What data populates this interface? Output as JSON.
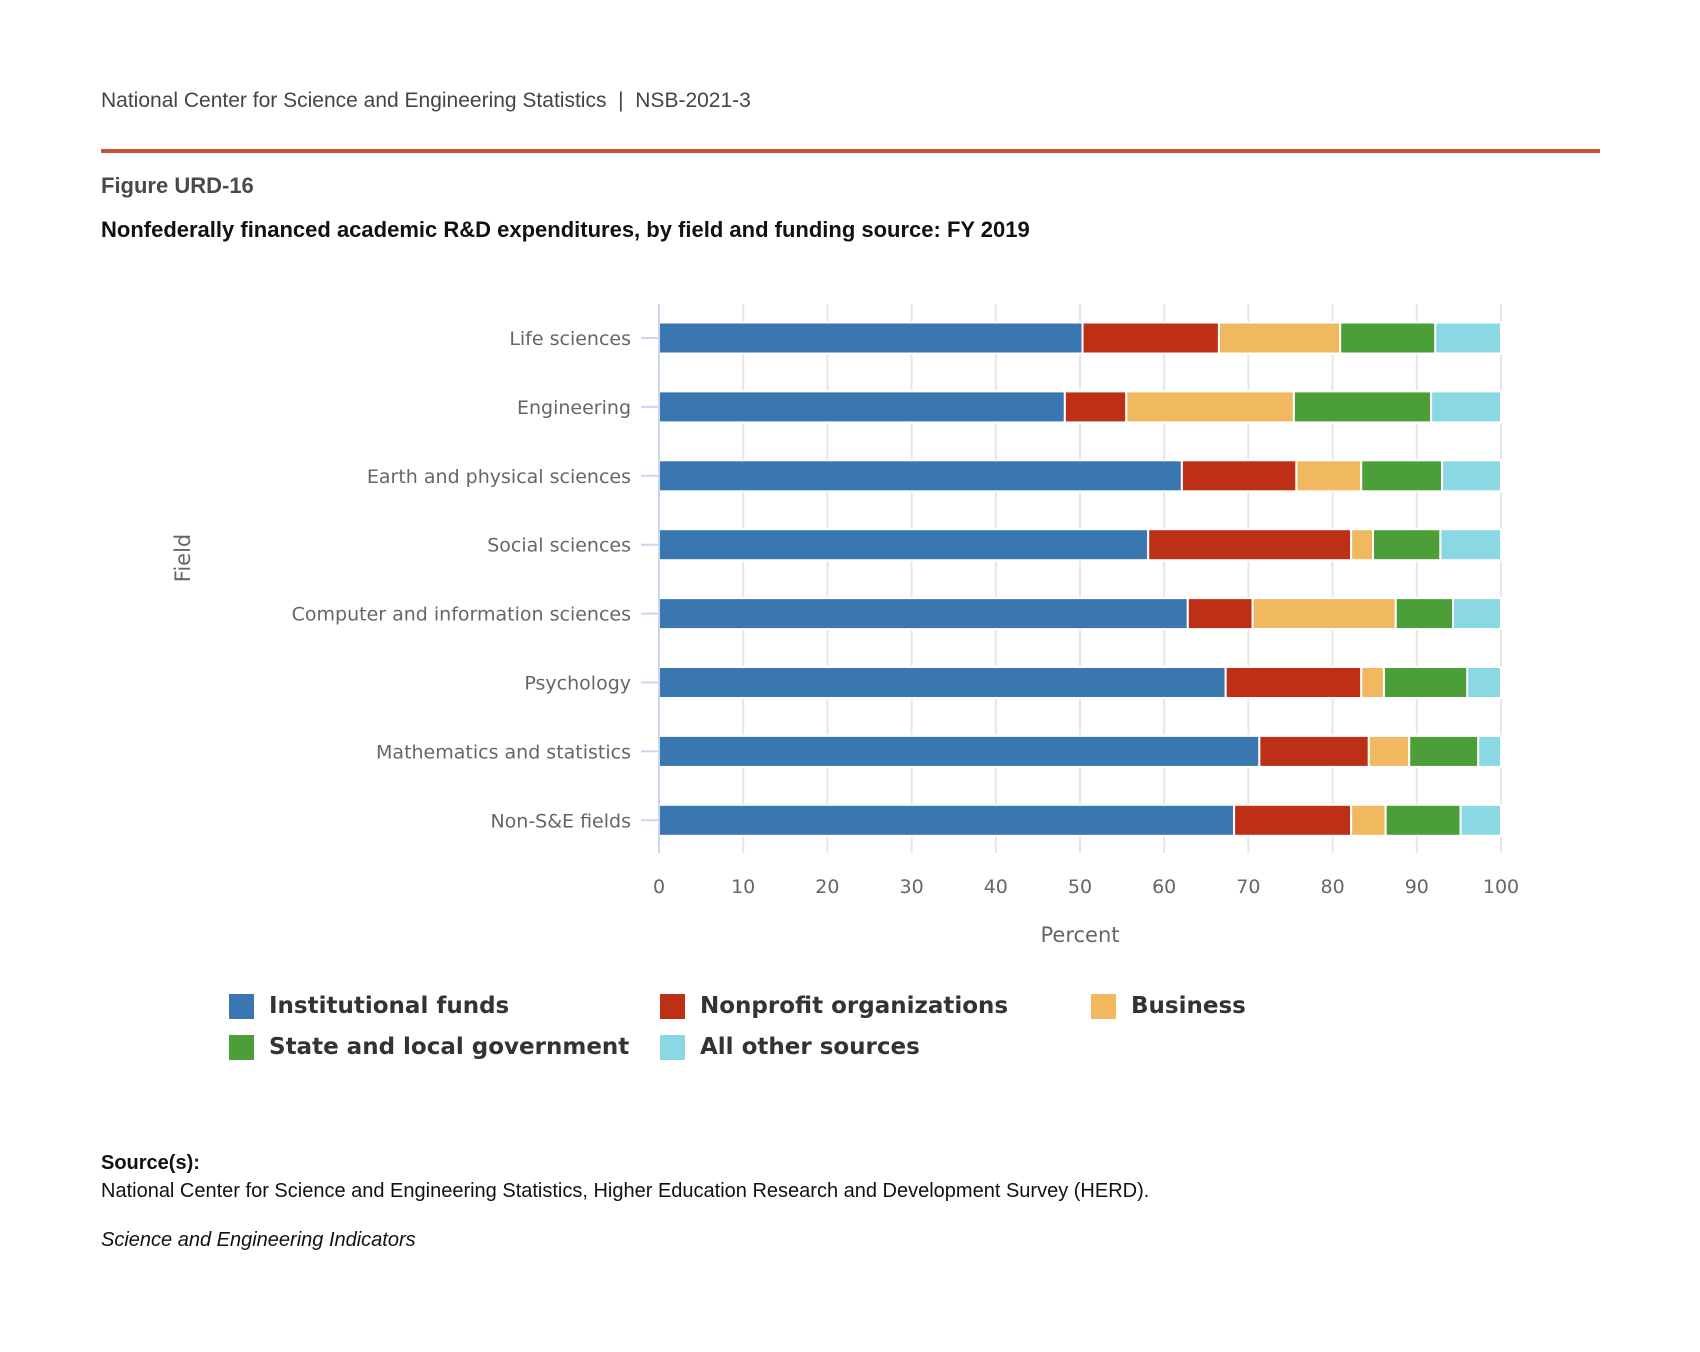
{
  "header": {
    "org": "National Center for Science and Engineering Statistics",
    "separator": "|",
    "report_id": "NSB-2021-3"
  },
  "figure": {
    "label": "Figure URD-16",
    "title": "Nonfederally financed academic R&D expenditures, by field and funding source: FY 2019"
  },
  "chart_data": {
    "type": "bar",
    "orientation": "horizontal",
    "stacked": true,
    "title": "Nonfederally financed academic R&D expenditures, by field and funding source: FY 2019",
    "xlabel": "Percent",
    "ylabel": "Field",
    "xlim": [
      0,
      100
    ],
    "xticks": [
      "0",
      "10",
      "20",
      "30",
      "40",
      "50",
      "60",
      "70",
      "80",
      "90",
      "100"
    ],
    "grid": true,
    "legend_position": "bottom",
    "categories": [
      "Life sciences",
      "Engineering",
      "Earth and physical sciences",
      "Social sciences",
      "Computer and information sciences",
      "Psychology",
      "Mathematics and statistics",
      "Non-S&E fields"
    ],
    "series": [
      {
        "name": "Institutional funds",
        "color": "#3a76af",
        "values": [
          50.3,
          48.2,
          62.1,
          58.1,
          62.8,
          67.3,
          71.3,
          68.3
        ]
      },
      {
        "name": "Nonprofit organizations",
        "color": "#bd3015",
        "values": [
          16.2,
          7.3,
          13.6,
          24.1,
          7.7,
          16.1,
          13.0,
          13.9
        ]
      },
      {
        "name": "Business",
        "color": "#f0b960",
        "values": [
          14.4,
          19.9,
          7.7,
          2.6,
          17.0,
          2.7,
          4.8,
          4.1
        ]
      },
      {
        "name": "State and local government",
        "color": "#4c9e38",
        "values": [
          11.3,
          16.3,
          9.6,
          8.0,
          6.8,
          9.9,
          8.2,
          8.9
        ]
      },
      {
        "name": "All other sources",
        "color": "#8ad8e3",
        "values": [
          7.8,
          8.3,
          7.0,
          7.2,
          5.7,
          4.0,
          2.7,
          4.8
        ]
      }
    ]
  },
  "source": {
    "heading": "Source(s):",
    "text": "National Center for Science and Engineering Statistics, Higher Education Research and Development Survey (HERD).",
    "publication": "Science and Engineering Indicators"
  }
}
